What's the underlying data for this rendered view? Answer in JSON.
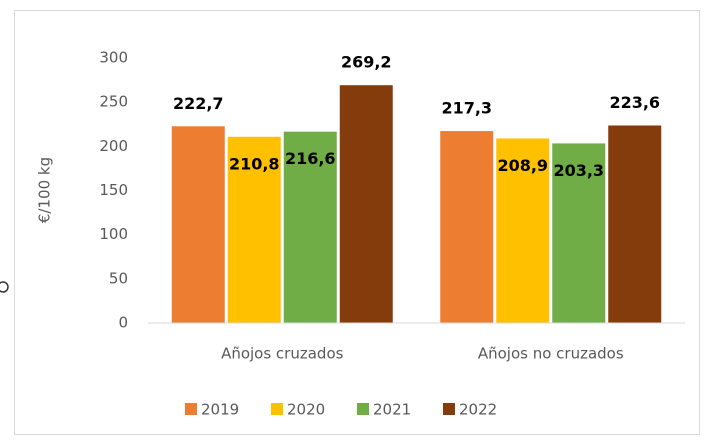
{
  "chart_data": {
    "type": "bar",
    "y_label": "€/100 kg",
    "categories": [
      "Añojos cruzados",
      "Añojos no cruzados"
    ],
    "series": [
      {
        "name": "2019",
        "color": "#ed7d31",
        "values": [
          222.7,
          217.3
        ],
        "value_labels": [
          "222,7",
          "217,3"
        ]
      },
      {
        "name": "2020",
        "color": "#ffc000",
        "values": [
          210.8,
          208.9
        ],
        "value_labels": [
          "210,8",
          "208,9"
        ]
      },
      {
        "name": "2021",
        "color": "#70ad47",
        "values": [
          216.6,
          203.3
        ],
        "value_labels": [
          "216,6",
          "203,3"
        ]
      },
      {
        "name": "2022",
        "color": "#843c0c",
        "values": [
          269.2,
          223.6
        ],
        "value_labels": [
          "269,2",
          "223,6"
        ]
      }
    ],
    "ylim": [
      0,
      300
    ],
    "yticks": [
      0,
      50,
      100,
      150,
      200,
      250,
      300
    ],
    "grid": false,
    "legend": "bottom"
  }
}
